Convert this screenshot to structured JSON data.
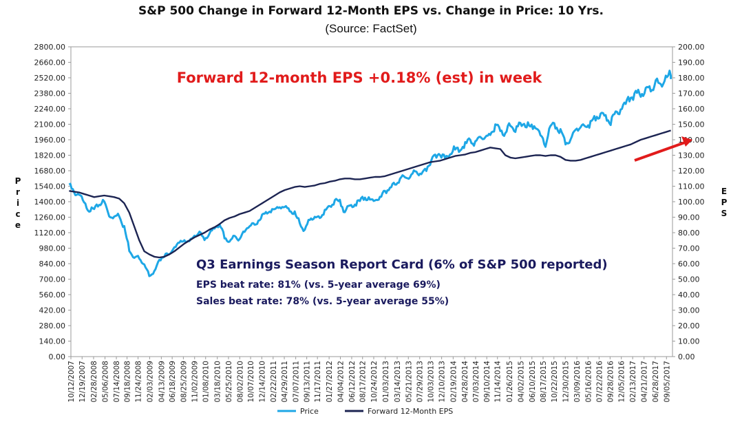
{
  "chart_data": {
    "type": "line",
    "title": "S&P 500 Change in Forward 12-Month EPS vs. Change in Price: 10 Yrs.",
    "subtitle": "(Source: FactSet)",
    "ylabel_left": "Price",
    "ylabel_right": "EPS",
    "ylim_left": [
      0,
      2800
    ],
    "ylim_right": [
      0,
      200
    ],
    "yticks_left": [
      "0.00",
      "140.00",
      "280.00",
      "420.00",
      "560.00",
      "700.00",
      "840.00",
      "980.00",
      "1120.00",
      "1260.00",
      "1400.00",
      "1540.00",
      "1680.00",
      "1820.00",
      "1960.00",
      "2100.00",
      "2240.00",
      "2380.00",
      "2520.00",
      "2660.00",
      "2800.00"
    ],
    "yticks_right": [
      "0.00",
      "10.00",
      "20.00",
      "30.00",
      "40.00",
      "50.00",
      "60.00",
      "70.00",
      "80.00",
      "90.00",
      "100.00",
      "110.00",
      "120.00",
      "130.00",
      "140.00",
      "150.00",
      "160.00",
      "170.00",
      "180.00",
      "190.00",
      "200.00"
    ],
    "xticks": [
      "10/12/2007",
      "12/19/2007",
      "02/28/2008",
      "05/06/2008",
      "07/14/2008",
      "09/18/2008",
      "11/24/2008",
      "02/03/2009",
      "04/13/2009",
      "06/18/2009",
      "08/25/2009",
      "11/02/2009",
      "01/08/2010",
      "03/18/2010",
      "05/25/2010",
      "08/02/2010",
      "10/07/2010",
      "12/14/2010",
      "02/22/2011",
      "04/29/2011",
      "07/07/2011",
      "09/13/2011",
      "11/17/2011",
      "01/27/2012",
      "04/04/2012",
      "06/12/2012",
      "08/17/2012",
      "10/24/2012",
      "01/03/2013",
      "03/14/2013",
      "05/21/2013",
      "07/29/2013",
      "10/03/2013",
      "12/10/2013",
      "02/19/2014",
      "04/28/2014",
      "07/03/2014",
      "09/10/2014",
      "11/14/2014",
      "01/26/2015",
      "04/02/2015",
      "06/10/2015",
      "08/17/2015",
      "10/22/2015",
      "12/30/2015",
      "03/09/2016",
      "05/16/2016",
      "07/22/2016",
      "09/28/2016",
      "12/05/2016",
      "02/13/2017",
      "04/21/2017",
      "06/28/2017",
      "09/05/2017"
    ],
    "series": [
      {
        "name": "Price",
        "color": "#1ea7e6",
        "axis": "left",
        "x": [
          "2007-10",
          "2007-11",
          "2007-12",
          "2008-01",
          "2008-02",
          "2008-03",
          "2008-04",
          "2008-05",
          "2008-06",
          "2008-07",
          "2008-08",
          "2008-09",
          "2008-10",
          "2008-11",
          "2008-12",
          "2009-01",
          "2009-02",
          "2009-03",
          "2009-04",
          "2009-05",
          "2009-06",
          "2009-07",
          "2009-08",
          "2009-09",
          "2009-10",
          "2009-11",
          "2009-12",
          "2010-01",
          "2010-02",
          "2010-03",
          "2010-04",
          "2010-05",
          "2010-06",
          "2010-07",
          "2010-08",
          "2010-09",
          "2010-10",
          "2010-11",
          "2010-12",
          "2011-01",
          "2011-02",
          "2011-03",
          "2011-04",
          "2011-05",
          "2011-06",
          "2011-07",
          "2011-08",
          "2011-09",
          "2011-10",
          "2011-11",
          "2011-12",
          "2012-01",
          "2012-02",
          "2012-03",
          "2012-04",
          "2012-05",
          "2012-06",
          "2012-07",
          "2012-08",
          "2012-09",
          "2012-10",
          "2012-11",
          "2012-12",
          "2013-01",
          "2013-02",
          "2013-03",
          "2013-04",
          "2013-05",
          "2013-06",
          "2013-07",
          "2013-08",
          "2013-09",
          "2013-10",
          "2013-11",
          "2013-12",
          "2014-01",
          "2014-02",
          "2014-03",
          "2014-04",
          "2014-05",
          "2014-06",
          "2014-07",
          "2014-08",
          "2014-09",
          "2014-10",
          "2014-11",
          "2014-12",
          "2015-01",
          "2015-02",
          "2015-03",
          "2015-04",
          "2015-05",
          "2015-06",
          "2015-07",
          "2015-08",
          "2015-09",
          "2015-10",
          "2015-11",
          "2015-12",
          "2016-01",
          "2016-02",
          "2016-03",
          "2016-04",
          "2016-05",
          "2016-06",
          "2016-07",
          "2016-08",
          "2016-09",
          "2016-10",
          "2016-11",
          "2016-12",
          "2017-01",
          "2017-02",
          "2017-03",
          "2017-04",
          "2017-05",
          "2017-06",
          "2017-07",
          "2017-08",
          "2017-09",
          "2017-10"
        ],
        "values": [
          1555,
          1480,
          1468,
          1380,
          1330,
          1320,
          1385,
          1400,
          1280,
          1265,
          1282,
          1165,
          970,
          890,
          900,
          820,
          740,
          760,
          870,
          920,
          920,
          990,
          1020,
          1060,
          1035,
          1100,
          1115,
          1070,
          1105,
          1170,
          1190,
          1085,
          1030,
          1100,
          1050,
          1140,
          1185,
          1185,
          1255,
          1285,
          1325,
          1325,
          1360,
          1345,
          1320,
          1290,
          1210,
          1130,
          1250,
          1245,
          1260,
          1310,
          1365,
          1405,
          1395,
          1310,
          1360,
          1380,
          1405,
          1440,
          1410,
          1415,
          1425,
          1500,
          1515,
          1570,
          1595,
          1630,
          1605,
          1690,
          1630,
          1680,
          1755,
          1805,
          1845,
          1780,
          1860,
          1870,
          1885,
          1920,
          1960,
          1930,
          2000,
          1970,
          2015,
          2065,
          2060,
          2000,
          2105,
          2065,
          2085,
          2110,
          2065,
          2100,
          1970,
          1920,
          2080,
          2080,
          2040,
          1940,
          1930,
          2060,
          2065,
          2095,
          2100,
          2170,
          2170,
          2165,
          2125,
          2200,
          2240,
          2280,
          2365,
          2360,
          2385,
          2410,
          2425,
          2470,
          2470,
          2515,
          2555
        ]
      },
      {
        "name": "Forward 12-Month EPS",
        "color": "#1c2452",
        "axis": "right",
        "x": [
          "2007-10",
          "2007-11",
          "2007-12",
          "2008-01",
          "2008-02",
          "2008-03",
          "2008-04",
          "2008-05",
          "2008-06",
          "2008-07",
          "2008-08",
          "2008-09",
          "2008-10",
          "2008-11",
          "2008-12",
          "2009-01",
          "2009-02",
          "2009-03",
          "2009-04",
          "2009-05",
          "2009-06",
          "2009-07",
          "2009-08",
          "2009-09",
          "2009-10",
          "2009-11",
          "2009-12",
          "2010-01",
          "2010-02",
          "2010-03",
          "2010-04",
          "2010-05",
          "2010-06",
          "2010-07",
          "2010-08",
          "2010-09",
          "2010-10",
          "2010-11",
          "2010-12",
          "2011-01",
          "2011-02",
          "2011-03",
          "2011-04",
          "2011-05",
          "2011-06",
          "2011-07",
          "2011-08",
          "2011-09",
          "2011-10",
          "2011-11",
          "2011-12",
          "2012-01",
          "2012-02",
          "2012-03",
          "2012-04",
          "2012-05",
          "2012-06",
          "2012-07",
          "2012-08",
          "2012-09",
          "2012-10",
          "2012-11",
          "2012-12",
          "2013-01",
          "2013-02",
          "2013-03",
          "2013-04",
          "2013-05",
          "2013-06",
          "2013-07",
          "2013-08",
          "2013-09",
          "2013-10",
          "2013-11",
          "2013-12",
          "2014-01",
          "2014-02",
          "2014-03",
          "2014-04",
          "2014-05",
          "2014-06",
          "2014-07",
          "2014-08",
          "2014-09",
          "2014-10",
          "2014-11",
          "2014-12",
          "2015-01",
          "2015-02",
          "2015-03",
          "2015-04",
          "2015-05",
          "2015-06",
          "2015-07",
          "2015-08",
          "2015-09",
          "2015-10",
          "2015-11",
          "2015-12",
          "2016-01",
          "2016-02",
          "2016-03",
          "2016-04",
          "2016-05",
          "2016-06",
          "2016-07",
          "2016-08",
          "2016-09",
          "2016-10",
          "2016-11",
          "2016-12",
          "2017-01",
          "2017-02",
          "2017-03",
          "2017-04",
          "2017-05",
          "2017-06",
          "2017-07",
          "2017-08",
          "2017-09",
          "2017-10"
        ],
        "values": [
          107,
          106.5,
          106,
          105,
          104,
          103,
          103.5,
          104,
          103.5,
          103,
          102,
          99,
          93,
          84,
          75,
          68,
          66,
          64.5,
          64,
          64.5,
          66,
          68,
          70.5,
          73,
          75,
          77,
          78.5,
          80,
          82,
          83.5,
          85.5,
          88,
          89.5,
          90.5,
          92,
          93,
          94,
          96,
          98,
          100,
          102,
          104,
          106,
          107.5,
          108.5,
          109.5,
          110,
          109.5,
          110,
          110.5,
          111.5,
          112,
          113,
          113.5,
          114.5,
          115,
          115,
          114.5,
          114.5,
          115,
          115.5,
          116,
          116,
          116.5,
          117.5,
          118.5,
          119.5,
          120.5,
          121.5,
          122.5,
          123.5,
          124.5,
          125.5,
          126,
          126.5,
          127.5,
          128.5,
          129.5,
          130,
          130.5,
          131.5,
          132,
          133,
          134,
          135,
          134.5,
          134,
          130,
          128.5,
          128,
          128.5,
          129,
          129.5,
          130,
          130,
          129.5,
          130,
          130,
          129,
          127,
          126.5,
          126.5,
          127,
          128,
          129,
          130,
          131,
          132,
          133,
          134,
          135,
          136,
          137,
          138.5,
          140,
          141,
          142,
          143,
          144,
          145,
          146
        ]
      }
    ],
    "legend": {
      "position": "bottom-center",
      "entries": [
        "Price",
        "Forward 12-Month EPS"
      ]
    },
    "annotations": {
      "red_headline": "Forward 12-month EPS +0.18% (est) in week",
      "report_card_title": "Q3 Earnings Season Report Card (6% of S&P 500 reported)",
      "eps_beat": "EPS beat rate: 81% (vs. 5-year average 69%)",
      "sales_beat": "Sales beat rate: 78% (vs. 5-year average 55%)"
    },
    "grid": false,
    "arrow_color": "#e11b1b"
  }
}
